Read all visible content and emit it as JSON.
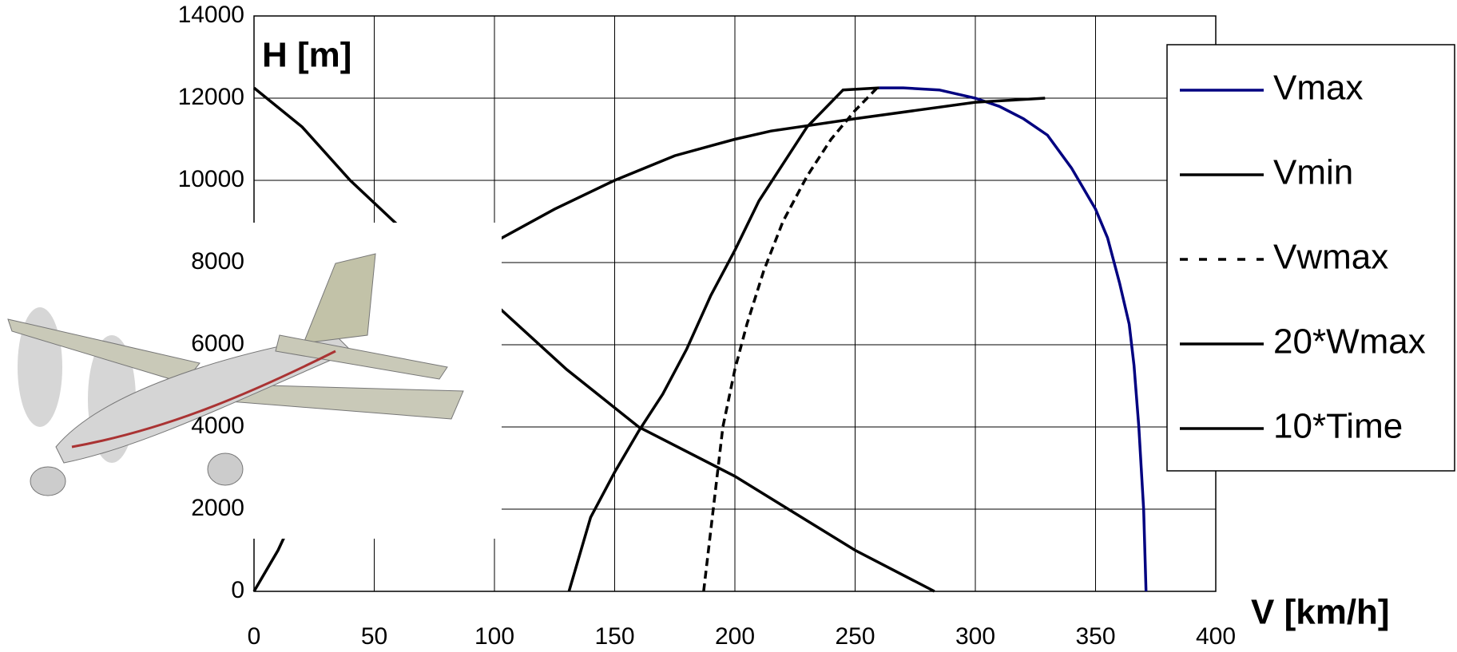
{
  "chart_data": {
    "type": "line",
    "x_label": "V [km/h]",
    "y_label": "H [m]",
    "xlim": [
      0,
      400
    ],
    "xticks": [
      0,
      50,
      100,
      150,
      200,
      250,
      300,
      350,
      400
    ],
    "ylim": [
      0,
      14000
    ],
    "yticks": [
      0,
      2000,
      4000,
      6000,
      8000,
      10000,
      12000,
      14000
    ],
    "grid": true,
    "legend": "right",
    "series": [
      {
        "name": "Vmax",
        "color": "#000080",
        "dash": false,
        "x": [
          260,
          270,
          285,
          300,
          310,
          320,
          330,
          340,
          345,
          350,
          355,
          360,
          364,
          366,
          368,
          369,
          370,
          371
        ],
        "values": [
          12250,
          12250,
          12200,
          12000,
          11800,
          11500,
          11100,
          10300,
          9800,
          9300,
          8600,
          7500,
          6500,
          5500,
          4000,
          3000,
          2000,
          0
        ]
      },
      {
        "name": "Vmin",
        "color": "#000000",
        "dash": false,
        "x": [
          131,
          140,
          150,
          160,
          170,
          180,
          190,
          200,
          210,
          220,
          230,
          245,
          260
        ],
        "values": [
          0,
          1800,
          2900,
          3900,
          4800,
          5900,
          7200,
          8300,
          9500,
          10400,
          11300,
          12200,
          12250
        ]
      },
      {
        "name": "Vwmax",
        "color": "#000000",
        "dash": true,
        "x": [
          187,
          190,
          195,
          200,
          205,
          212,
          220,
          230,
          240,
          250,
          260
        ],
        "values": [
          0,
          1500,
          4000,
          5400,
          6500,
          7800,
          9000,
          10100,
          11000,
          11700,
          12300
        ]
      },
      {
        "name": "20*Wmax",
        "color": "#000000",
        "dash": false,
        "x": [
          283,
          250,
          200,
          160,
          130,
          100,
          80,
          60,
          40,
          20,
          0
        ],
        "values": [
          0,
          1000,
          2800,
          4000,
          5400,
          7000,
          8000,
          8900,
          10000,
          11300,
          12250
        ]
      },
      {
        "name": "10*Time",
        "color": "#000000",
        "dash": false,
        "x": [
          0,
          10,
          30,
          60,
          100,
          125,
          150,
          175,
          200,
          215,
          250,
          275,
          300,
          329
        ],
        "values": [
          0,
          1000,
          3500,
          6500,
          8500,
          9300,
          10000,
          10600,
          11000,
          11200,
          11500,
          11700,
          11900,
          12000
        ]
      }
    ]
  }
}
